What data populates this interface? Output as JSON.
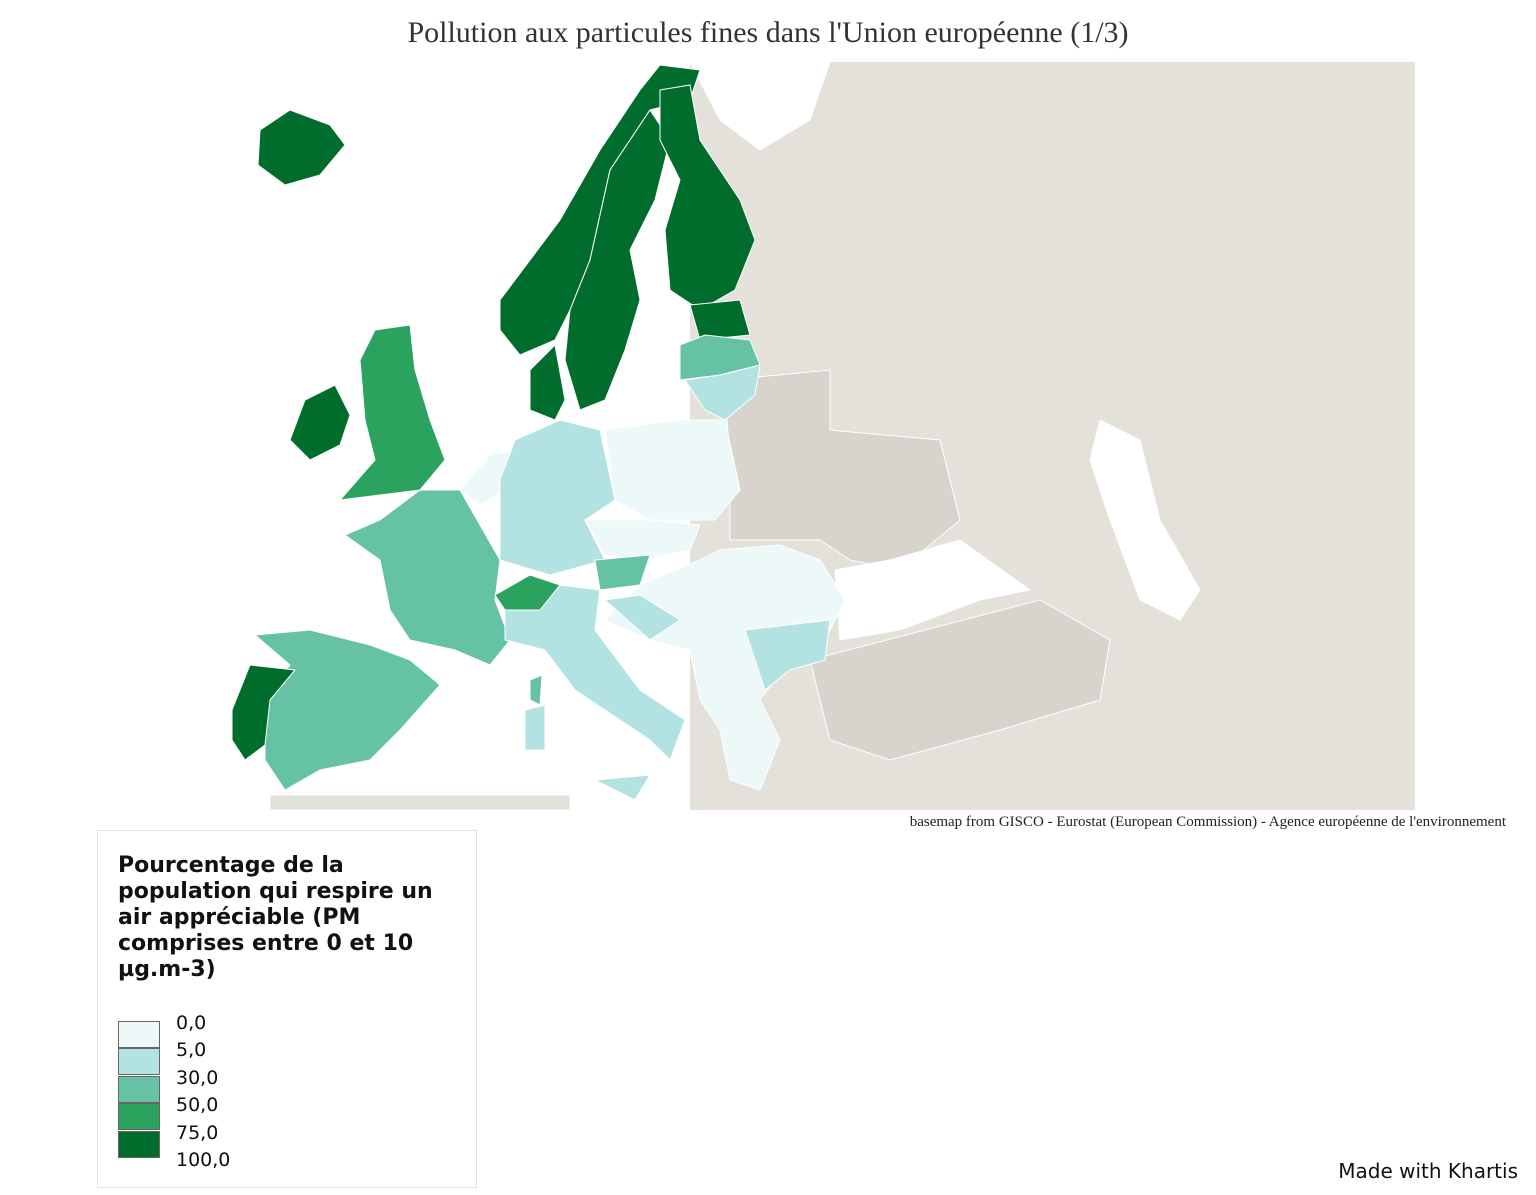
{
  "title": "Pollution aux particules fines dans l'Union européenne (1/3)",
  "source": "basemap from GISCO - Eurostat (European Commission) - Agence européenne de l'environnement",
  "legend": {
    "title": "Pourcentage de la population qui respire un air appréciable (PM comprises entre 0 et 10 µg.m-3)",
    "breaks": [
      "0,0",
      "5,0",
      "30,0",
      "50,0",
      "75,0",
      "100,0"
    ],
    "colors": [
      "#edf8f9",
      "#b2e2e2",
      "#66c2a4",
      "#2ca25f",
      "#006d2c"
    ]
  },
  "credit": "Made with Khartis"
}
